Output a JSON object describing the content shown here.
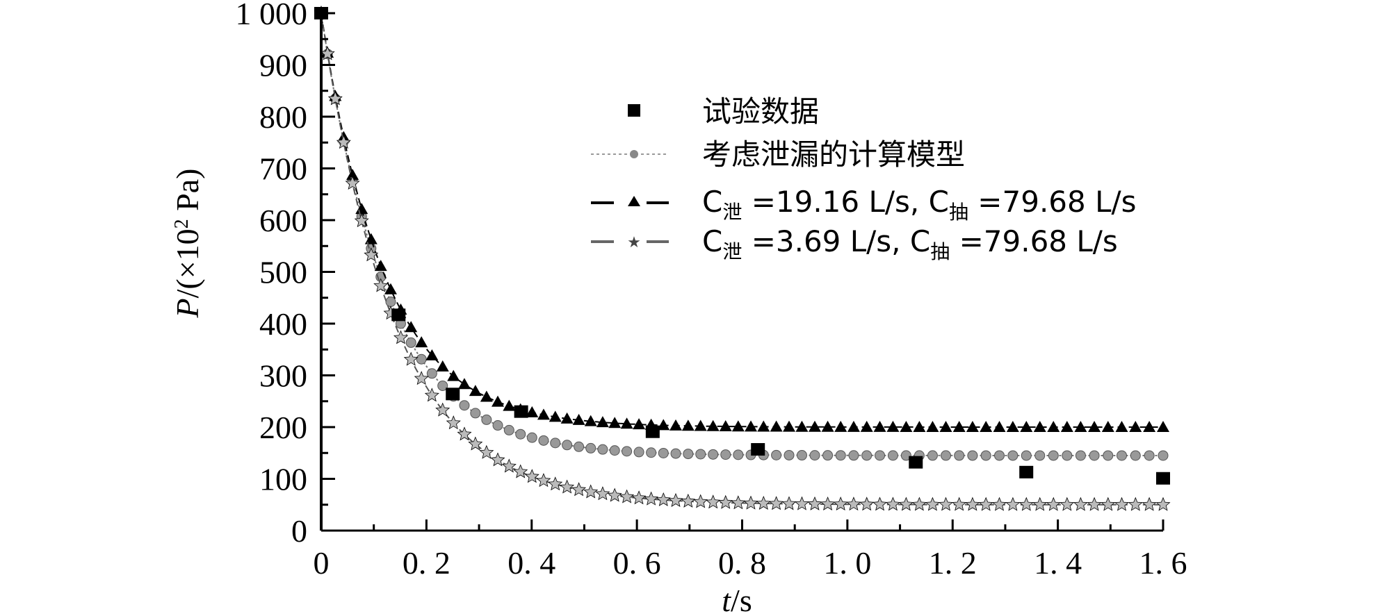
{
  "chart_data": {
    "type": "line",
    "title": "",
    "xlabel": "t/s",
    "ylabel": "P/(×10² Pa)",
    "xlim": [
      0,
      1.6
    ],
    "ylim": [
      0,
      1000
    ],
    "x_ticks": [
      "0",
      "0.2",
      "0.4",
      "0.6",
      "0.8",
      "1.0",
      "1.2",
      "1.4",
      "1.6"
    ],
    "y_ticks": [
      "0",
      "100",
      "200",
      "300",
      "400",
      "500",
      "600",
      "700",
      "800",
      "900",
      "1 000"
    ],
    "grid": false,
    "legend_position": "upper right (inside)",
    "series": [
      {
        "name": "试验数据",
        "style": "marker-only",
        "marker": "square",
        "x": [
          0.0,
          0.147,
          0.25,
          0.38,
          0.63,
          0.83,
          1.13,
          1.34,
          1.6
        ],
        "y": [
          1000,
          417,
          264,
          230,
          191,
          157,
          132,
          113,
          101
        ]
      },
      {
        "name": "考虑泄漏的计算模型",
        "style": "dotted-line",
        "marker": "circle",
        "color": "#777777",
        "model": {
          "p0": 1000,
          "p_inf": 145,
          "tau": 0.125
        },
        "x": [
          0,
          0.1,
          0.2,
          0.3,
          0.4,
          0.5,
          0.6,
          0.8,
          1.0,
          1.2,
          1.4,
          1.6
        ],
        "y": [
          1000,
          529,
          303,
          195,
          162,
          151,
          148,
          145,
          145,
          145,
          145,
          145
        ]
      },
      {
        "name": "C泄 =19.16 L/s, C抽 =79.68 L/s",
        "style": "dashed-line",
        "marker": "triangle",
        "color": "#000000",
        "model": {
          "p0": 1000,
          "p_inf": 200,
          "tau": 0.12
        },
        "x": [
          0,
          0.1,
          0.2,
          0.3,
          0.4,
          0.5,
          0.6,
          0.8,
          1.0,
          1.2,
          1.4,
          1.6
        ],
        "y": [
          1000,
          552,
          342,
          265,
          225,
          210,
          205,
          200,
          200,
          200,
          200,
          200
        ]
      },
      {
        "name": "C泄 =3.69 L/s, C抽 =79.68 L/s",
        "style": "dash-dot-line",
        "marker": "star",
        "color": "#555555",
        "model": {
          "p0": 1000,
          "p_inf": 50,
          "tau": 0.14
        },
        "x": [
          0,
          0.1,
          0.2,
          0.3,
          0.4,
          0.5,
          0.6,
          0.8,
          1.0,
          1.2,
          1.4,
          1.6
        ],
        "y": [
          1000,
          516,
          276,
          150,
          104,
          77,
          63,
          53,
          51,
          50,
          50,
          50
        ]
      }
    ]
  },
  "legend": {
    "items": [
      {
        "label": "试验数据"
      },
      {
        "label": "考虑泄漏的计算模型"
      },
      {
        "c1": "C",
        "s1": "泄",
        "mid": " =19.16 L/s, C",
        "s2": "抽",
        "end": " =79.68 L/s"
      },
      {
        "c1": "C",
        "s1": "泄",
        "mid": " =3.69 L/s, C",
        "s2": "抽",
        "end": " =79.68 L/s"
      }
    ]
  },
  "axes": {
    "x_title_var": "t",
    "x_title_unit": "/s",
    "y_title_var": "P",
    "y_title_rest": "/(×10",
    "y_title_sup": "2",
    "y_title_end": " Pa)"
  }
}
